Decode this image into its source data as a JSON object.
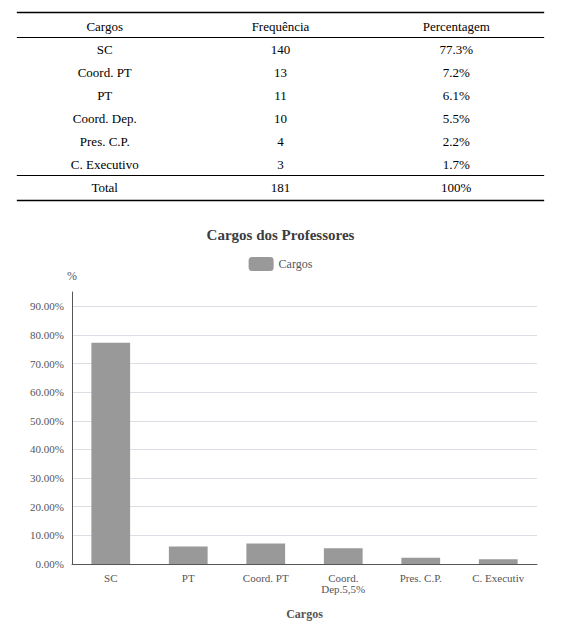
{
  "chart_data": [
    {
      "type": "table",
      "columns": [
        "Cargos",
        "Frequência",
        "Percentagem"
      ],
      "rows": [
        [
          "SC",
          "140",
          "77.3%"
        ],
        [
          "Coord. PT",
          "13",
          "7.2%"
        ],
        [
          "PT",
          "11",
          "6.1%"
        ],
        [
          "Coord. Dep.",
          "10",
          "5.5%"
        ],
        [
          "Pres. C.P.",
          "4",
          "2.2%"
        ],
        [
          "C. Executivo",
          "3",
          "1.7%"
        ],
        [
          "Total",
          "181",
          "100%"
        ]
      ]
    },
    {
      "type": "bar",
      "title": "Cargos dos Professores",
      "xlabel": "Cargos",
      "ylabel": "%",
      "categories": [
        "SC",
        "PT",
        "Coord. PT",
        "Coord.\nDep.5,5%",
        "Pres. C.P.",
        "C. Executiv"
      ],
      "series": [
        {
          "name": "Cargos",
          "color": "#999999",
          "values": [
            77.3,
            6.1,
            7.2,
            5.5,
            2.2,
            1.7
          ]
        }
      ],
      "ylim": [
        0,
        95
      ],
      "yticks": [
        {
          "value": 0,
          "label": "0.00%"
        },
        {
          "value": 10,
          "label": "10.00%"
        },
        {
          "value": 20,
          "label": "20.00%"
        },
        {
          "value": 30,
          "label": "30.00%"
        },
        {
          "value": 40,
          "label": "40.00%"
        },
        {
          "value": 50,
          "label": "50.00%"
        },
        {
          "value": 60,
          "label": "60.00%"
        },
        {
          "value": 70,
          "label": "70.00%"
        },
        {
          "value": 80,
          "label": "80.00%"
        },
        {
          "value": 90,
          "label": "90.00%"
        }
      ],
      "grid": true,
      "legend": "top"
    }
  ]
}
